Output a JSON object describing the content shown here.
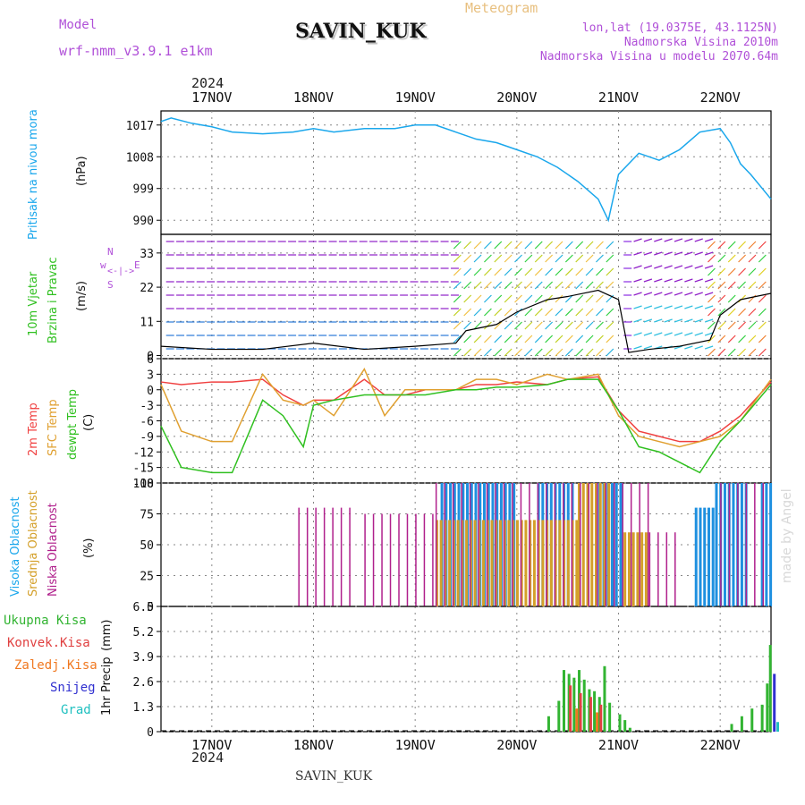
{
  "header": {
    "model_label": "Model",
    "model_name": "wrf-nmm_v3.9.1  e1km",
    "station": "SAVIN_KUK",
    "product": "Meteogram",
    "lonlat": "lon,lat (19.0375E, 43.1125N)",
    "elevation": "Nadmorska Visina 2010m",
    "model_elevation": "Nadmorska Visina u modelu 2070.64m",
    "year": "2024",
    "footer_station": "SAVIN_KUK",
    "credit": "made by Angel"
  },
  "colors": {
    "pressure": "#1aa7ec",
    "temp2m": "#f04040",
    "sfc_temp": "#e0a030",
    "dewpt": "#30c020",
    "high_cloud": "#1e90e0",
    "mid_cloud": "#d4a02a",
    "low_cloud": "#b0208c",
    "total_precip": "#32b432",
    "conv_precip": "#e04040",
    "frozen_precip": "#f07820",
    "snow": "#3030d0",
    "hail": "#20c0c0",
    "label_purple": "#b050d8"
  },
  "chart_data": [
    {
      "type": "line",
      "ylabel": "Pritisak na nivou mora",
      "unit": "(hPa)",
      "ylim": [
        986,
        1021
      ],
      "yticks": [
        990,
        999,
        1008,
        1017
      ],
      "x_days": [
        16.5,
        16.6,
        16.8,
        17.0,
        17.2,
        17.5,
        17.8,
        18.0,
        18.2,
        18.5,
        18.8,
        19.0,
        19.2,
        19.4,
        19.6,
        19.8,
        20.0,
        20.2,
        20.4,
        20.6,
        20.8,
        20.9,
        21.0,
        21.2,
        21.4,
        21.6,
        21.8,
        22.0,
        22.1,
        22.2,
        22.3,
        22.5
      ],
      "values": [
        1018,
        1019,
        1017.5,
        1016.5,
        1015,
        1014.5,
        1015,
        1016,
        1015,
        1016,
        1016,
        1017,
        1017,
        1015,
        1013,
        1012,
        1010,
        1008,
        1005,
        1001,
        996,
        990,
        1003,
        1009,
        1007,
        1010,
        1015,
        1016,
        1012,
        1006,
        1003,
        996
      ]
    },
    {
      "type": "line",
      "ylabel": "10m Vjetar Brzina i Pravac",
      "unit": "(m/s)",
      "ylim": [
        -1,
        39
      ],
      "yticks": [
        0,
        11,
        22,
        33
      ],
      "compass": [
        "w",
        "<-|->",
        "E",
        "S",
        "N"
      ],
      "x_days": [
        16.5,
        17.0,
        17.5,
        18.0,
        18.5,
        19.0,
        19.4,
        19.5,
        19.8,
        20.0,
        20.3,
        20.5,
        20.8,
        21.0,
        21.1,
        21.3,
        21.6,
        21.9,
        22.0,
        22.2,
        22.5
      ],
      "values": [
        3,
        2,
        2,
        4,
        2,
        3,
        4,
        8,
        10,
        14,
        18,
        19,
        21,
        18,
        1,
        2,
        3,
        5,
        13,
        18,
        20
      ]
    },
    {
      "type": "line",
      "ylabel": "2m Temp / SFC Temp / dewpt Temp",
      "unit": "(C)",
      "ylim": [
        -18,
        6
      ],
      "yticks": [
        -18,
        -15,
        -12,
        -9,
        -6,
        -3,
        0,
        3,
        6
      ],
      "x_days": [
        16.5,
        16.7,
        17.0,
        17.2,
        17.5,
        17.7,
        17.9,
        18.0,
        18.2,
        18.5,
        18.7,
        18.9,
        19.1,
        19.4,
        19.6,
        19.8,
        20.0,
        20.3,
        20.5,
        20.8,
        21.0,
        21.2,
        21.4,
        21.6,
        21.8,
        22.0,
        22.2,
        22.5
      ],
      "series": [
        {
          "name": "2m Temp",
          "values": [
            1.5,
            1,
            1.5,
            1.5,
            2,
            -1,
            -3,
            -2,
            -2,
            2,
            -1,
            -1,
            0,
            0,
            1,
            1,
            1.5,
            1,
            2,
            2.5,
            -4,
            -8,
            -9,
            -10,
            -10,
            -8,
            -5,
            1.5
          ]
        },
        {
          "name": "SFC Temp",
          "values": [
            1,
            -8,
            -10,
            -10,
            3,
            -2,
            -3,
            -2,
            -5,
            4,
            -5,
            0,
            0,
            0,
            2,
            2,
            1,
            3,
            2,
            3,
            -5,
            -9,
            -10,
            -11,
            -10,
            -9,
            -6,
            2
          ]
        },
        {
          "name": "dewpt Temp",
          "values": [
            -7,
            -15,
            -16,
            -16,
            -2,
            -5,
            -11,
            -3,
            -2,
            -1,
            -1,
            -1,
            -1,
            0,
            0,
            0.5,
            0.5,
            1,
            2,
            2,
            -4,
            -11,
            -12,
            -14,
            -16,
            -10,
            -6,
            1
          ]
        }
      ]
    },
    {
      "type": "bar",
      "ylabel": "Visoka Oblacnost / Srednja Oblacnost / Niska Oblacnost",
      "unit": "(%)",
      "ylim": [
        0,
        100
      ],
      "yticks": [
        0,
        25,
        50,
        75,
        100
      ],
      "series": [
        {
          "name": "Visoka Oblacnost",
          "segments": [
            [
              19.25,
              20.0,
              100
            ],
            [
              20.2,
              20.55,
              100
            ],
            [
              20.8,
              21.05,
              100
            ],
            [
              21.75,
              21.95,
              80
            ],
            [
              21.95,
              22.25,
              100
            ],
            [
              22.4,
              22.5,
              100
            ]
          ]
        },
        {
          "name": "Srednja Oblacnost",
          "segments": [
            [
              19.2,
              20.6,
              70
            ],
            [
              20.6,
              20.9,
              100
            ],
            [
              21.05,
              21.3,
              60
            ]
          ]
        },
        {
          "name": "Niska Oblacnost",
          "segments": [
            [
              17.85,
              18.4,
              80
            ],
            [
              18.5,
              19.2,
              75
            ],
            [
              19.2,
              21.3,
              100
            ],
            [
              21.3,
              21.6,
              60
            ],
            [
              22.0,
              22.5,
              100
            ]
          ]
        }
      ]
    },
    {
      "type": "bar",
      "ylabel": "1hr Precip",
      "unit": "(mm)",
      "ylim": [
        0,
        6.5
      ],
      "yticks": [
        0,
        1.3,
        2.6,
        3.9,
        5.2,
        6.5
      ],
      "series": [
        {
          "name": "Ukupna Kisa",
          "x_days": [
            20.3,
            20.4,
            20.45,
            20.5,
            20.55,
            20.6,
            20.65,
            20.7,
            20.75,
            20.8,
            20.85,
            20.9,
            21.0,
            21.05,
            21.1,
            22.1,
            22.2,
            22.3,
            22.4,
            22.45,
            22.48
          ],
          "values": [
            0.8,
            1.6,
            3.2,
            3.0,
            2.8,
            3.2,
            2.7,
            2.2,
            2.1,
            1.8,
            3.4,
            1.5,
            0.9,
            0.6,
            0.2,
            0.4,
            0.8,
            1.2,
            1.4,
            2.5,
            4.5
          ]
        },
        {
          "name": "Konvek.Kisa",
          "x_days": [
            20.5,
            20.6,
            20.7,
            20.8
          ],
          "values": [
            2.4,
            2.0,
            1.8,
            1.4
          ]
        },
        {
          "name": "Zaledj.Kisa",
          "x_days": [
            20.55,
            20.75
          ],
          "values": [
            1.2,
            1.0
          ]
        },
        {
          "name": "Snijeg",
          "x_days": [
            22.48
          ],
          "values": [
            3.0
          ]
        },
        {
          "name": "Grad",
          "x_days": [
            22.5
          ],
          "values": [
            0.5
          ]
        }
      ]
    }
  ],
  "x_axis": {
    "days": [
      17,
      18,
      19,
      20,
      21,
      22
    ],
    "labels": [
      "17NOV",
      "18NOV",
      "19NOV",
      "20NOV",
      "21NOV",
      "22NOV"
    ],
    "xlim": [
      16.5,
      22.5
    ]
  }
}
